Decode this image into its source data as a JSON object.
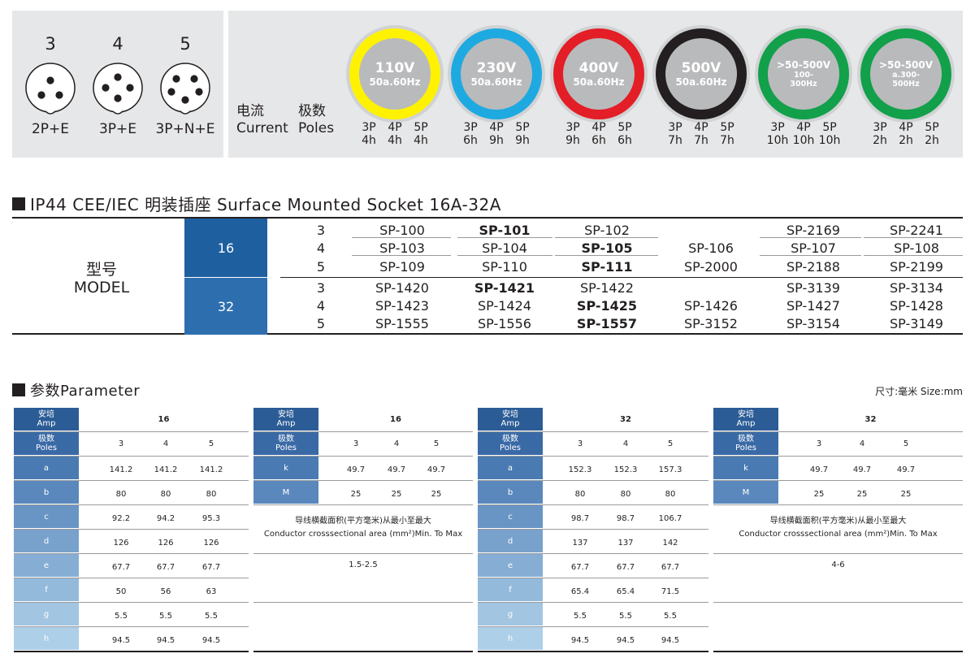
{
  "pins": [
    {
      "count": "3",
      "label": "2P+E"
    },
    {
      "count": "4",
      "label": "3P+E"
    },
    {
      "count": "5",
      "label": "3P+N+E"
    }
  ],
  "current_label": {
    "cn": "电流",
    "en": "Current"
  },
  "poles_label": {
    "cn": "极数",
    "en": "Poles"
  },
  "voltages": [
    {
      "main": "110V",
      "sub": "50a.60Hz",
      "ring_color": "#fff200",
      "inner_color": "#b9babc",
      "poles": [
        "3P",
        "4P",
        "5P"
      ],
      "hours": [
        "4h",
        "4h",
        "4h"
      ]
    },
    {
      "main": "230V",
      "sub": "50a.60Hz",
      "ring_color": "#1fa9e1",
      "inner_color": "#b9babc",
      "poles": [
        "3P",
        "4P",
        "5P"
      ],
      "hours": [
        "6h",
        "9h",
        "9h"
      ]
    },
    {
      "main": "400V",
      "sub": "50a.60Hz",
      "ring_color": "#e31e26",
      "inner_color": "#b9babc",
      "poles": [
        "3P",
        "4P",
        "5P"
      ],
      "hours": [
        "9h",
        "6h",
        "6h"
      ]
    },
    {
      "main": "500V",
      "sub": "50a.60Hz",
      "ring_color": "#231f20",
      "inner_color": "#b9babc",
      "poles": [
        "3P",
        "4P",
        "5P"
      ],
      "hours": [
        "7h",
        "7h",
        "7h"
      ]
    },
    {
      "main": ">50-500V",
      "sub": "100-",
      "sub2": "300Hz",
      "ring_color": "#12a04b",
      "inner_color": "#b9babc",
      "poles": [
        "3P",
        "4P",
        "5P"
      ],
      "hours": [
        "10h",
        "10h",
        "10h"
      ]
    },
    {
      "main": ">50-500V",
      "sub": "a.300-",
      "sub2": "500Hz",
      "ring_color": "#12a04b",
      "inner_color": "#b9babc",
      "poles": [
        "3P",
        "4P",
        "5P"
      ],
      "hours": [
        "2h",
        "2h",
        "2h"
      ]
    }
  ],
  "socket_heading": "IP44 CEE/IEC 明装插座 Surface Mounted Socket  16A-32A",
  "model": {
    "label_cn": "型号",
    "label_en": "MODEL",
    "amp_color_16": "#1e5fa0",
    "amp_color_32": "#2d6eae",
    "groups": [
      {
        "amp": "16",
        "rows": [
          {
            "pole": "3",
            "codes": [
              "SP-100",
              "SP-101",
              "SP-102",
              "",
              "SP-2169",
              "SP-2241"
            ],
            "bold": [
              1
            ]
          },
          {
            "pole": "4",
            "codes": [
              "SP-103",
              "SP-104",
              "SP-105",
              "SP-106",
              "SP-107",
              "SP-108"
            ],
            "bold": [
              2
            ]
          },
          {
            "pole": "5",
            "codes": [
              "SP-109",
              "SP-110",
              "SP-111",
              "SP-2000",
              "SP-2188",
              "SP-2199"
            ],
            "bold": [
              2
            ]
          }
        ]
      },
      {
        "amp": "32",
        "rows": [
          {
            "pole": "3",
            "codes": [
              "SP-1420",
              "SP-1421",
              "SP-1422",
              "",
              "SP-3139",
              "SP-3134"
            ],
            "bold": [
              1
            ]
          },
          {
            "pole": "4",
            "codes": [
              "SP-1423",
              "SP-1424",
              "SP-1425",
              "SP-1426",
              "SP-1427",
              "SP-1428"
            ],
            "bold": [
              2
            ]
          },
          {
            "pole": "5",
            "codes": [
              "SP-1555",
              "SP-1556",
              "SP-1557",
              "SP-3152",
              "SP-3154",
              "SP-3149"
            ],
            "bold": [
              2
            ]
          }
        ]
      }
    ]
  },
  "param_heading": "参数Parameter",
  "size_note": "尺寸:毫米  Size:mm",
  "param_header_labels": {
    "amp_cn": "安培",
    "amp_en": "Amp",
    "poles_cn": "极数",
    "poles_en": "Poles"
  },
  "param_tables": [
    {
      "amp": "16",
      "poles": [
        "3",
        "4",
        "5"
      ],
      "rows": [
        {
          "key": "a",
          "values": [
            "141.2",
            "141.2",
            "141.2"
          ]
        },
        {
          "key": "b",
          "values": [
            "80",
            "80",
            "80"
          ]
        },
        {
          "key": "c",
          "values": [
            "92.2",
            "94.2",
            "95.3"
          ]
        },
        {
          "key": "d",
          "values": [
            "126",
            "126",
            "126"
          ]
        },
        {
          "key": "e",
          "values": [
            "67.7",
            "67.7",
            "67.7"
          ]
        },
        {
          "key": "f",
          "values": [
            "50",
            "56",
            "63"
          ]
        },
        {
          "key": "g",
          "values": [
            "5.5",
            "5.5",
            "5.5"
          ]
        },
        {
          "key": "h",
          "values": [
            "94.5",
            "94.5",
            "94.5"
          ]
        }
      ]
    },
    {
      "amp": "16",
      "poles": [
        "3",
        "4",
        "5"
      ],
      "rows": [
        {
          "key": "k",
          "values": [
            "49.7",
            "49.7",
            "49.7"
          ]
        },
        {
          "key": "M",
          "values": [
            "25",
            "25",
            "25"
          ]
        }
      ],
      "note_cn": "导线横截面积(平方毫米)从最小至最大",
      "note_en": "Conductor crosssectional area (mm²)Min. To Max",
      "note_value": "1.5-2.5"
    },
    {
      "amp": "32",
      "poles": [
        "3",
        "4",
        "5"
      ],
      "rows": [
        {
          "key": "a",
          "values": [
            "152.3",
            "152.3",
            "157.3"
          ]
        },
        {
          "key": "b",
          "values": [
            "80",
            "80",
            "80"
          ]
        },
        {
          "key": "c",
          "values": [
            "98.7",
            "98.7",
            "106.7"
          ]
        },
        {
          "key": "d",
          "values": [
            "137",
            "137",
            "142"
          ]
        },
        {
          "key": "e",
          "values": [
            "67.7",
            "67.7",
            "67.7"
          ]
        },
        {
          "key": "f",
          "values": [
            "65.4",
            "65.4",
            "71.5"
          ]
        },
        {
          "key": "g",
          "values": [
            "5.5",
            "5.5",
            "5.5"
          ]
        },
        {
          "key": "h",
          "values": [
            "94.5",
            "94.5",
            "94.5"
          ]
        }
      ]
    },
    {
      "amp": "32",
      "poles": [
        "3",
        "4",
        "5"
      ],
      "rows": [
        {
          "key": "k",
          "values": [
            "49.7",
            "49.7",
            "49.7"
          ]
        },
        {
          "key": "M",
          "values": [
            "25",
            "25",
            "25"
          ]
        }
      ],
      "note_cn": "导线横截面积(平方毫米)从最小至最大",
      "note_en": "Conductor crosssectional area (mm²)Min. To Max",
      "note_value": "4-6"
    }
  ],
  "param_header_colors": [
    "#2b5c96",
    "#3a6aa6",
    "#4a7ab2",
    "#5a88bc",
    "#6995c4",
    "#78a2cc",
    "#86aed4",
    "#94badb",
    "#a2c5e2",
    "#aecfe8"
  ]
}
